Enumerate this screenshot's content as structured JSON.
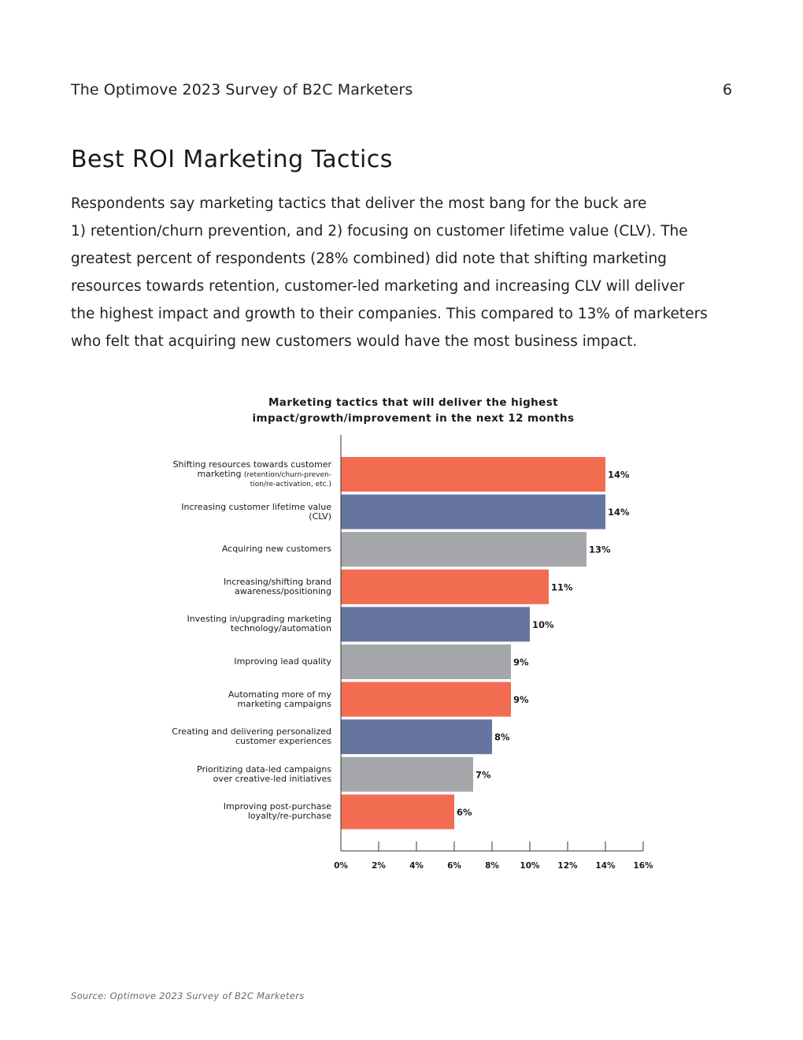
{
  "header": {
    "title": "The Optimove 2023 Survey of B2C Marketers",
    "page_number": "6"
  },
  "section": {
    "heading": "Best ROI Marketing Tactics",
    "intro_lines": [
      "Respondents say marketing tactics that deliver the most bang for the buck are",
      "1) retention/churn prevention, and 2) focusing on customer lifetime value (CLV). The",
      "greatest percent of respondents (28% combined) did note that shifting marketing",
      "resources towards retention, customer-led marketing and increasing CLV will deliver",
      "the highest impact and growth to their companies. This compared to 13% of marketers",
      "who felt that acquiring new customers would have the most business impact."
    ]
  },
  "chart_data": {
    "type": "bar",
    "orientation": "horizontal",
    "title_lines": [
      "Marketing tactics that will deliver the highest",
      "impact/growth/improvement in the next 12 months"
    ],
    "categories": [
      {
        "lines": [
          "Shifting resources towards customer",
          "marketing (retention/churn-preven-",
          "tion/re-activation, etc.)"
        ],
        "small_part": "(retention/churn-preven-"
      },
      {
        "lines": [
          "Increasing customer lifetime value",
          "(CLV)"
        ]
      },
      {
        "lines": [
          "Acquiring new customers"
        ]
      },
      {
        "lines": [
          "Increasing/shifting brand",
          "awareness/positioning"
        ]
      },
      {
        "lines": [
          "Investing in/upgrading marketing",
          "technology/automation"
        ]
      },
      {
        "lines": [
          "Improving lead quality"
        ]
      },
      {
        "lines": [
          "Automating more of my",
          "marketing campaigns"
        ]
      },
      {
        "lines": [
          "Creating and delivering personalized",
          "customer experiences"
        ]
      },
      {
        "lines": [
          "Prioritizing data-led campaigns",
          "over creative-led initiatives"
        ]
      },
      {
        "lines": [
          "Improving post-purchase",
          "loyalty/re-purchase"
        ]
      }
    ],
    "values": [
      14,
      14,
      13,
      11,
      10,
      9,
      9,
      8,
      7,
      6
    ],
    "value_labels": [
      "14%",
      "14%",
      "13%",
      "11%",
      "10%",
      "9%",
      "9%",
      "8%",
      "7%",
      "6%"
    ],
    "colors": [
      "#f26c52",
      "#6675a0",
      "#a6a7ab",
      "#f26c52",
      "#6675a0",
      "#a6a7ab",
      "#f26c52",
      "#6675a0",
      "#a6a7ab",
      "#f26c52"
    ],
    "xlim": [
      0,
      16
    ],
    "x_ticks": [
      0,
      2,
      4,
      6,
      8,
      10,
      12,
      14,
      16
    ],
    "x_tick_labels": [
      "0%",
      "2%",
      "4%",
      "6%",
      "8%",
      "10%",
      "12%",
      "14%",
      "16%"
    ],
    "xlabel": "",
    "ylabel": ""
  },
  "footer": {
    "source": "Source: Optimove 2023 Survey of B2C Marketers"
  }
}
